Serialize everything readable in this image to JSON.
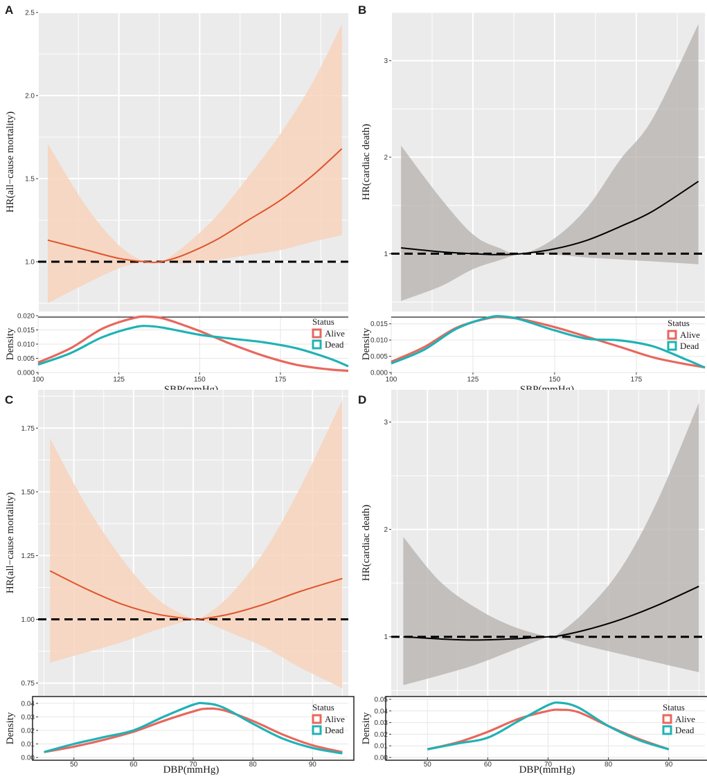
{
  "colors": {
    "panel_bg": "#ebebeb",
    "grid": "#ffffff",
    "orange_line": "#e0532a",
    "orange_band": "#f7d4bd",
    "black_line": "#000000",
    "gray_band": "#b5b0ad",
    "alive": "#e8675d",
    "dead": "#20b2b5",
    "reference_line": "#000000"
  },
  "chart_data": [
    {
      "id": "A",
      "panel_label": "A",
      "type": "line",
      "title": "",
      "hr_plot": {
        "ylabel": "HR(all−cause mortality)",
        "xlim": [
          100,
          196
        ],
        "ylim": [
          0.7,
          2.5
        ],
        "yticks": [
          1.0,
          1.5,
          2.0,
          2.5
        ],
        "ytick_labels": [
          "1.0",
          "1.5",
          "2.0",
          "2.5"
        ],
        "reference": 1.0,
        "line_color": "orange",
        "x": [
          103,
          115,
          125,
          133,
          138,
          145,
          155,
          165,
          175,
          185,
          194
        ],
        "hr": [
          1.13,
          1.07,
          1.02,
          1.0,
          1.0,
          1.04,
          1.13,
          1.25,
          1.37,
          1.52,
          1.68
        ],
        "lower": [
          0.75,
          0.87,
          0.96,
          1.0,
          1.0,
          0.99,
          1.01,
          1.04,
          1.07,
          1.12,
          1.16
        ],
        "upper": [
          1.71,
          1.33,
          1.1,
          1.0,
          1.0,
          1.09,
          1.27,
          1.51,
          1.77,
          2.08,
          2.43
        ]
      },
      "density_plot": {
        "ylabel": "Density",
        "xlabel": "SBP(mmHg)",
        "xlim": [
          100,
          196
        ],
        "ylim": [
          0,
          0.02
        ],
        "yticks": [
          0.0,
          0.005,
          0.01,
          0.015,
          0.02
        ],
        "ytick_labels": [
          "0.000",
          "0.005",
          "0.010",
          "0.015",
          "0.020"
        ],
        "xticks": [
          100,
          125,
          150,
          175
        ],
        "xtick_labels": [
          "100",
          "125",
          "150",
          "175"
        ],
        "boxed": false,
        "legend_title": "Status",
        "series": [
          {
            "name": "Alive",
            "x": [
              100,
              110,
              120,
              130,
              135,
              140,
              150,
              160,
              170,
              180,
              190,
              196
            ],
            "values": [
              0.0035,
              0.0085,
              0.0155,
              0.0193,
              0.0196,
              0.0186,
              0.0146,
              0.0099,
              0.0058,
              0.0027,
              0.0011,
              0.0006
            ]
          },
          {
            "name": "Dead",
            "x": [
              100,
              110,
              120,
              130,
              135,
              140,
              150,
              160,
              170,
              180,
              190,
              196
            ],
            "values": [
              0.0028,
              0.0068,
              0.0125,
              0.016,
              0.0163,
              0.0155,
              0.0133,
              0.0119,
              0.0106,
              0.0085,
              0.005,
              0.0022
            ]
          }
        ]
      },
      "xlabel": "SBP(mmHg)"
    },
    {
      "id": "B",
      "panel_label": "B",
      "type": "line",
      "title": "",
      "hr_plot": {
        "ylabel": "HR(cardiac death)",
        "xlim": [
          100,
          196
        ],
        "ylim": [
          0.4,
          3.5
        ],
        "yticks": [
          1,
          2,
          3
        ],
        "ytick_labels": [
          "1",
          "2",
          "3"
        ],
        "reference": 1.0,
        "line_color": "black",
        "x": [
          103,
          115,
          125,
          133,
          140,
          150,
          160,
          170,
          180,
          194
        ],
        "hr": [
          1.06,
          1.02,
          1.0,
          0.99,
          1.0,
          1.05,
          1.14,
          1.28,
          1.44,
          1.75
        ],
        "lower": [
          0.51,
          0.66,
          0.84,
          0.93,
          1.0,
          0.99,
          0.96,
          0.94,
          0.92,
          0.89
        ],
        "upper": [
          2.12,
          1.58,
          1.2,
          1.06,
          1.0,
          1.16,
          1.48,
          1.97,
          2.4,
          3.38
        ]
      },
      "density_plot": {
        "ylabel": "Density",
        "xlabel": "SBP(mmHg)",
        "xlim": [
          100,
          196
        ],
        "ylim": [
          0,
          0.0175
        ],
        "yticks": [
          0.0,
          0.005,
          0.01,
          0.015
        ],
        "ytick_labels": [
          "0.000",
          "0.005",
          "0.010",
          "0.015"
        ],
        "xticks": [
          100,
          125,
          150,
          175
        ],
        "xtick_labels": [
          "100",
          "125",
          "150",
          "175"
        ],
        "boxed": false,
        "legend_title": "Status",
        "series": [
          {
            "name": "Alive",
            "x": [
              100,
              110,
              120,
              130,
              135,
              140,
              150,
              160,
              170,
              180,
              190,
              196
            ],
            "values": [
              0.0033,
              0.0078,
              0.0138,
              0.0168,
              0.017,
              0.0164,
              0.014,
              0.011,
              0.0079,
              0.0047,
              0.0026,
              0.0016
            ]
          },
          {
            "name": "Dead",
            "x": [
              100,
              110,
              120,
              130,
              135,
              140,
              150,
              160,
              170,
              180,
              190,
              196
            ],
            "values": [
              0.0028,
              0.007,
              0.0135,
              0.017,
              0.0172,
              0.0162,
              0.013,
              0.0104,
              0.0099,
              0.0081,
              0.0041,
              0.0015
            ]
          }
        ]
      },
      "xlabel": "SBP(mmHg)"
    },
    {
      "id": "C",
      "panel_label": "C",
      "type": "line",
      "title": "",
      "hr_plot": {
        "ylabel": "HR(all−cause mortality)",
        "xlim": [
          44,
          96
        ],
        "ylim": [
          0.7,
          1.9
        ],
        "yticks": [
          0.75,
          1.0,
          1.25,
          1.5,
          1.75
        ],
        "ytick_labels": [
          "0.75",
          "1.00",
          "1.25",
          "1.50",
          "1.75"
        ],
        "reference": 1.0,
        "line_color": "orange",
        "x": [
          46,
          52,
          58,
          64,
          70,
          71,
          76,
          82,
          88,
          95
        ],
        "hr": [
          1.19,
          1.12,
          1.06,
          1.02,
          1.0,
          1.0,
          1.02,
          1.06,
          1.11,
          1.16
        ],
        "lower": [
          0.83,
          0.87,
          0.91,
          0.96,
          1.0,
          1.0,
          0.95,
          0.89,
          0.81,
          0.73
        ],
        "upper": [
          1.71,
          1.45,
          1.24,
          1.08,
          1.0,
          1.0,
          1.09,
          1.27,
          1.52,
          1.86
        ]
      },
      "density_plot": {
        "ylabel": "Density",
        "xlabel": "DBP(mmHg)",
        "xlim": [
          44,
          96
        ],
        "ylim": [
          0,
          0.043
        ],
        "yticks": [
          0.0,
          0.01,
          0.02,
          0.03,
          0.04
        ],
        "ytick_labels": [
          "0.00",
          "0.01",
          "0.02",
          "0.03",
          "0.04"
        ],
        "xticks": [
          50,
          60,
          70,
          80,
          90
        ],
        "xtick_labels": [
          "50",
          "60",
          "70",
          "80",
          "90"
        ],
        "boxed": true,
        "legend_title": "Status",
        "series": [
          {
            "name": "Alive",
            "x": [
              45,
              50,
              55,
              60,
              65,
              70,
              72,
              75,
              80,
              85,
              90,
              95
            ],
            "values": [
              0.004,
              0.008,
              0.013,
              0.019,
              0.027,
              0.034,
              0.036,
              0.035,
              0.027,
              0.017,
              0.009,
              0.004
            ]
          },
          {
            "name": "Dead",
            "x": [
              45,
              50,
              55,
              60,
              65,
              70,
              72,
              75,
              80,
              85,
              90,
              95
            ],
            "values": [
              0.004,
              0.01,
              0.015,
              0.02,
              0.03,
              0.039,
              0.04,
              0.037,
              0.025,
              0.014,
              0.007,
              0.003
            ]
          }
        ]
      },
      "xlabel": "DBP(mmHg)"
    },
    {
      "id": "D",
      "panel_label": "D",
      "type": "line",
      "title": "",
      "hr_plot": {
        "ylabel": "HR(cardiac death)",
        "xlim": [
          44,
          96
        ],
        "ylim": [
          0.45,
          3.3
        ],
        "yticks": [
          1,
          2,
          3
        ],
        "ytick_labels": [
          "1",
          "2",
          "3"
        ],
        "reference": 1.0,
        "line_color": "black",
        "x": [
          46,
          52,
          58,
          64,
          70,
          71,
          76,
          82,
          88,
          95
        ],
        "hr": [
          1.0,
          0.98,
          0.97,
          0.98,
          1.0,
          1.0,
          1.06,
          1.16,
          1.29,
          1.47
        ],
        "lower": [
          0.55,
          0.64,
          0.74,
          0.87,
          1.0,
          1.0,
          0.92,
          0.84,
          0.76,
          0.67
        ],
        "upper": [
          1.93,
          1.52,
          1.27,
          1.1,
          1.0,
          1.0,
          1.23,
          1.63,
          2.25,
          3.18
        ]
      },
      "density_plot": {
        "ylabel": "Density",
        "xlabel": "DBP(mmHg)",
        "xlim": [
          44,
          96
        ],
        "ylim": [
          0,
          0.05
        ],
        "yticks": [
          0.0,
          0.01,
          0.02,
          0.03,
          0.04,
          0.05
        ],
        "ytick_labels": [
          "0.00",
          "0.01",
          "0.02",
          "0.03",
          "0.04",
          "0.05"
        ],
        "xticks": [
          50,
          60,
          70,
          80,
          90
        ],
        "xtick_labels": [
          "50",
          "60",
          "70",
          "80",
          "90"
        ],
        "boxed": true,
        "legend_title": "Status",
        "series": [
          {
            "name": "Alive",
            "x": [
              50,
              55,
              60,
              65,
              70,
              72,
              75,
              80,
              85,
              90
            ],
            "values": [
              0.007,
              0.013,
              0.022,
              0.033,
              0.04,
              0.041,
              0.039,
              0.027,
              0.016,
              0.007
            ]
          },
          {
            "name": "Dead",
            "x": [
              50,
              55,
              60,
              65,
              70,
              72,
              75,
              80,
              85,
              90
            ],
            "values": [
              0.007,
              0.012,
              0.017,
              0.031,
              0.045,
              0.047,
              0.043,
              0.027,
              0.015,
              0.007
            ]
          }
        ]
      },
      "xlabel": "DBP(mmHg)"
    }
  ]
}
